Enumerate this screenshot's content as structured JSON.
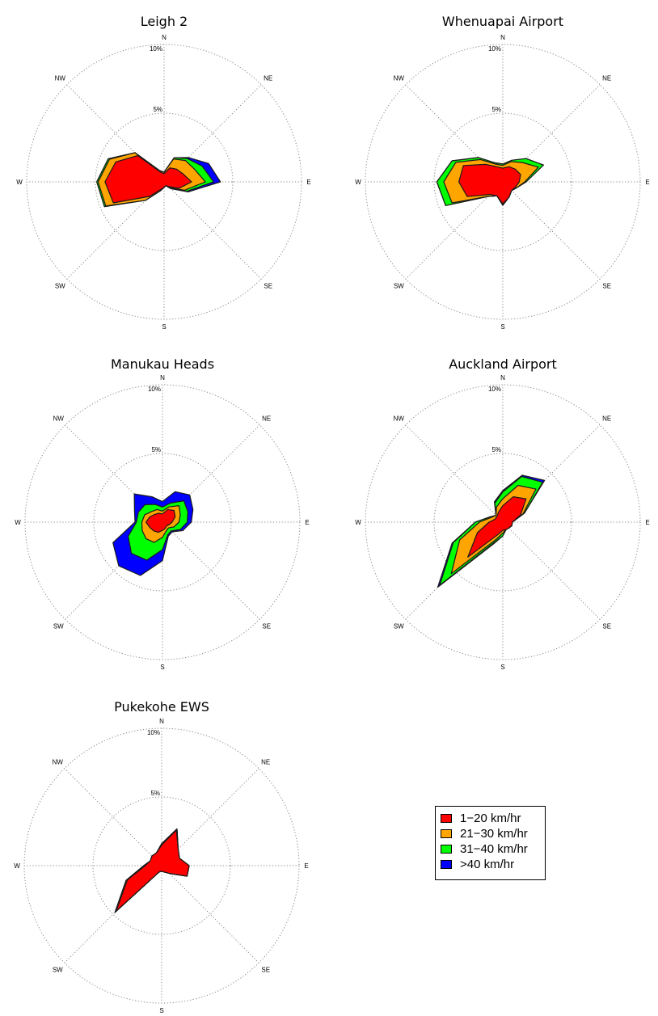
{
  "chart_data": {
    "type": "wind-rose",
    "directions": [
      "N",
      "NNE",
      "NE",
      "ENE",
      "E",
      "ESE",
      "SE",
      "SSE",
      "S",
      "SSW",
      "SW",
      "WSW",
      "W",
      "WNW",
      "NW",
      "NNW"
    ],
    "compass_labels": [
      "N",
      "NE",
      "E",
      "SE",
      "S",
      "SW",
      "W",
      "NW"
    ],
    "ring_labels": [
      "5%",
      "10%"
    ],
    "rmax": 10,
    "legend": [
      {
        "label": "1−20 km/hr",
        "color": "#ff0000"
      },
      {
        "label": "21−30 km/hr",
        "color": "#ffa500"
      },
      {
        "label": "31−40 km/hr",
        "color": "#00ff00"
      },
      {
        "label": ">40 km/hr",
        "color": "#0000ff"
      }
    ],
    "panels": [
      {
        "title": "Leigh 2",
        "cumulative": [
          [
            0.6,
            1.1,
            1.3,
            1.5,
            2.0,
            1.2,
            0.5,
            0.3,
            0.4,
            0.6,
            1.5,
            4.0,
            4.3,
            3.8,
            2.7,
            0.8
          ],
          [
            0.7,
            1.8,
            2.2,
            2.4,
            3.0,
            1.6,
            0.6,
            0.3,
            0.4,
            0.7,
            1.9,
            4.6,
            4.8,
            4.3,
            3.0,
            0.9
          ],
          [
            0.7,
            1.9,
            2.4,
            3.0,
            3.6,
            1.8,
            0.7,
            0.3,
            0.4,
            0.7,
            1.9,
            4.7,
            4.9,
            4.4,
            3.0,
            0.9
          ],
          [
            0.7,
            1.9,
            2.5,
            3.5,
            4.1,
            1.9,
            0.7,
            0.3,
            0.4,
            0.7,
            1.9,
            4.7,
            4.9,
            4.4,
            3.0,
            0.9
          ]
        ]
      },
      {
        "title": "Whenuapai Airport",
        "cumulative": [
          [
            1.0,
            1.2,
            1.3,
            1.4,
            1.2,
            1.0,
            0.9,
            1.2,
            1.6,
            1.1,
            1.3,
            2.8,
            3.2,
            3.1,
            1.8,
            1.2
          ],
          [
            1.2,
            1.6,
            2.0,
            2.8,
            1.6,
            1.1,
            0.9,
            1.2,
            1.7,
            1.1,
            1.5,
            4.0,
            4.3,
            3.7,
            2.3,
            1.4
          ],
          [
            1.3,
            1.7,
            2.4,
            3.2,
            1.7,
            1.1,
            0.9,
            1.2,
            1.7,
            1.1,
            1.5,
            4.5,
            4.8,
            4.0,
            2.5,
            1.5
          ],
          [
            1.3,
            1.7,
            2.4,
            3.2,
            1.7,
            1.1,
            0.9,
            1.2,
            1.7,
            1.1,
            1.5,
            4.5,
            4.8,
            4.0,
            2.5,
            1.5
          ]
        ]
      },
      {
        "title": "Manukau Heads",
        "cumulative": [
          [
            0.6,
            1.0,
            1.2,
            1.0,
            0.7,
            0.5,
            0.4,
            0.5,
            0.6,
            0.8,
            0.9,
            1.0,
            1.2,
            1.0,
            0.8,
            0.7
          ],
          [
            0.8,
            1.2,
            1.7,
            1.4,
            1.2,
            0.9,
            0.6,
            0.7,
            1.1,
            1.6,
            1.7,
            1.6,
            1.5,
            1.4,
            1.1,
            1.0
          ],
          [
            1.1,
            1.5,
            2.2,
            2.0,
            1.8,
            1.4,
            0.9,
            1.0,
            2.0,
            3.0,
            3.2,
            2.7,
            1.9,
            1.9,
            1.8,
            1.4
          ],
          [
            1.5,
            2.4,
            2.8,
            2.4,
            2.1,
            1.6,
            1.0,
            1.1,
            2.8,
            4.2,
            4.5,
            3.9,
            2.0,
            2.2,
            2.9,
            2.0
          ]
        ]
      },
      {
        "title": "Auckland Airport",
        "cumulative": [
          [
            1.2,
            2.0,
            2.4,
            1.4,
            0.7,
            0.7,
            0.6,
            0.6,
            0.6,
            1.0,
            3.6,
            2.0,
            1.0,
            0.6,
            0.6,
            0.8
          ],
          [
            1.7,
            2.9,
            3.4,
            1.6,
            0.7,
            0.7,
            0.6,
            0.6,
            0.8,
            1.4,
            5.3,
            3.4,
            1.7,
            0.9,
            0.7,
            1.2
          ],
          [
            2.2,
            3.6,
            4.1,
            1.7,
            0.7,
            0.7,
            0.6,
            0.6,
            1.0,
            1.6,
            6.5,
            3.9,
            2.0,
            1.0,
            0.7,
            1.5
          ],
          [
            2.3,
            3.7,
            4.3,
            1.7,
            0.7,
            0.7,
            0.6,
            0.6,
            1.0,
            1.7,
            6.7,
            4.0,
            2.0,
            1.0,
            0.7,
            1.6
          ]
        ]
      },
      {
        "title": "Pukekohe EWS",
        "cumulative": [
          [
            1.5,
            2.8,
            1.7,
            1.4,
            2.0,
            2.0,
            0.8,
            0.5,
            0.4,
            0.5,
            4.7,
            2.7,
            1.2,
            0.9,
            1.0,
            1.0
          ],
          [
            1.6,
            2.9,
            1.7,
            1.4,
            2.0,
            2.0,
            0.8,
            0.5,
            0.4,
            0.5,
            4.8,
            2.8,
            1.3,
            0.9,
            1.0,
            1.0
          ],
          [
            1.6,
            2.9,
            1.7,
            1.4,
            2.0,
            2.0,
            0.8,
            0.5,
            0.4,
            0.5,
            4.8,
            2.8,
            1.3,
            0.9,
            1.0,
            1.0
          ],
          [
            1.6,
            2.9,
            1.7,
            1.4,
            2.0,
            2.0,
            0.8,
            0.5,
            0.4,
            0.5,
            4.8,
            2.8,
            1.3,
            0.9,
            1.0,
            1.0
          ]
        ]
      }
    ]
  }
}
